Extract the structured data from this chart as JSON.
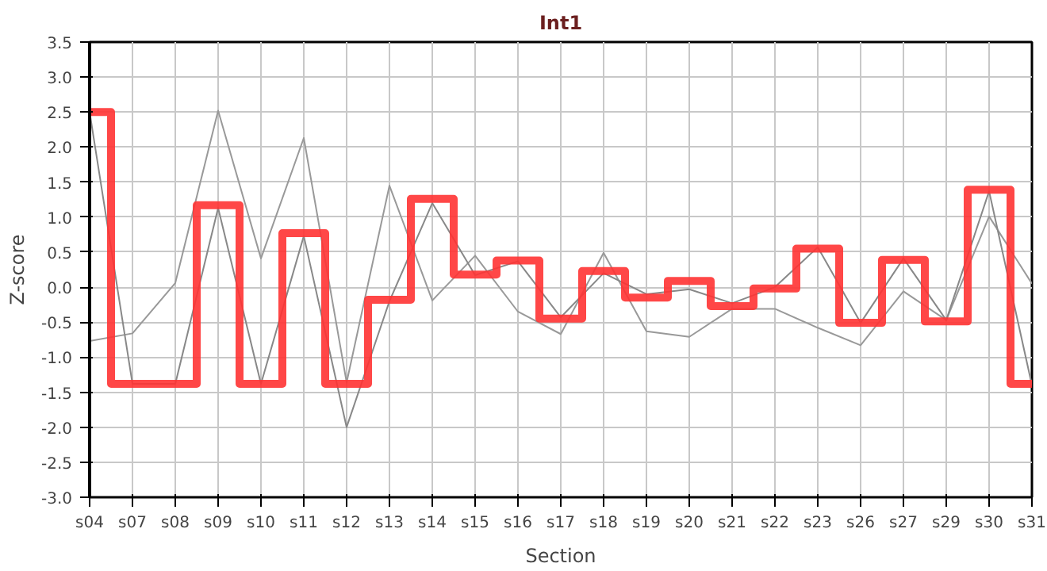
{
  "chart_data": {
    "type": "line",
    "title": "Int1",
    "xlabel": "Section",
    "ylabel": "Z-score",
    "categories": [
      "s04",
      "s07",
      "s08",
      "s09",
      "s10",
      "s11",
      "s12",
      "s13",
      "s14",
      "s15",
      "s16",
      "s17",
      "s18",
      "s19",
      "s20",
      "s21",
      "s22",
      "s23",
      "s26",
      "s27",
      "s29",
      "s30",
      "s31"
    ],
    "series": [
      {
        "color": "#999999",
        "values": [
          -0.77,
          -0.66,
          0.06,
          2.52,
          0.41,
          2.13,
          -1.36,
          1.45,
          -0.19,
          0.45,
          -0.35,
          -0.67,
          0.49,
          -0.63,
          -0.71,
          -0.31,
          -0.31,
          -0.58,
          -0.83,
          -0.06,
          -0.47,
          1.01,
          0.05
        ]
      },
      {
        "color": "#888888",
        "values": [
          2.5,
          -1.38,
          -1.38,
          1.13,
          -1.38,
          0.73,
          -2.0,
          -0.2,
          1.2,
          0.17,
          0.37,
          -0.43,
          0.2,
          -0.1,
          -0.03,
          -0.23,
          0.0,
          0.57,
          -0.51,
          0.41,
          -0.47,
          1.37,
          -1.4
        ]
      },
      {
        "type": "step",
        "color": "#ff3333",
        "values": [
          2.5,
          -1.38,
          -1.38,
          1.17,
          -1.38,
          0.77,
          -1.38,
          -0.18,
          1.26,
          0.18,
          0.38,
          -0.45,
          0.23,
          -0.15,
          0.09,
          -0.27,
          -0.02,
          0.55,
          -0.51,
          0.39,
          -0.49,
          1.39,
          -1.38
        ]
      }
    ],
    "ylim": [
      -3.0,
      3.5
    ],
    "yticks": [
      {
        "value": -3.0,
        "label": "-3.0"
      },
      {
        "value": -2.5,
        "label": "-2.5"
      },
      {
        "value": -2.0,
        "label": "-2.0"
      },
      {
        "value": -1.5,
        "label": "-1.5"
      },
      {
        "value": -1.0,
        "label": "-1.0"
      },
      {
        "value": -0.5,
        "label": "-0.5"
      },
      {
        "value": 0,
        "label": "0.0"
      },
      {
        "value": 0.5,
        "label": "0.5"
      },
      {
        "value": 1.0,
        "label": "1.0"
      },
      {
        "value": 1.5,
        "label": "1.5"
      },
      {
        "value": 2.0,
        "label": "2.0"
      },
      {
        "value": 2.5,
        "label": "2.5"
      },
      {
        "value": 3.0,
        "label": "3.0"
      },
      {
        "value": 3.5,
        "label": "3.5"
      }
    ],
    "grid": true
  }
}
